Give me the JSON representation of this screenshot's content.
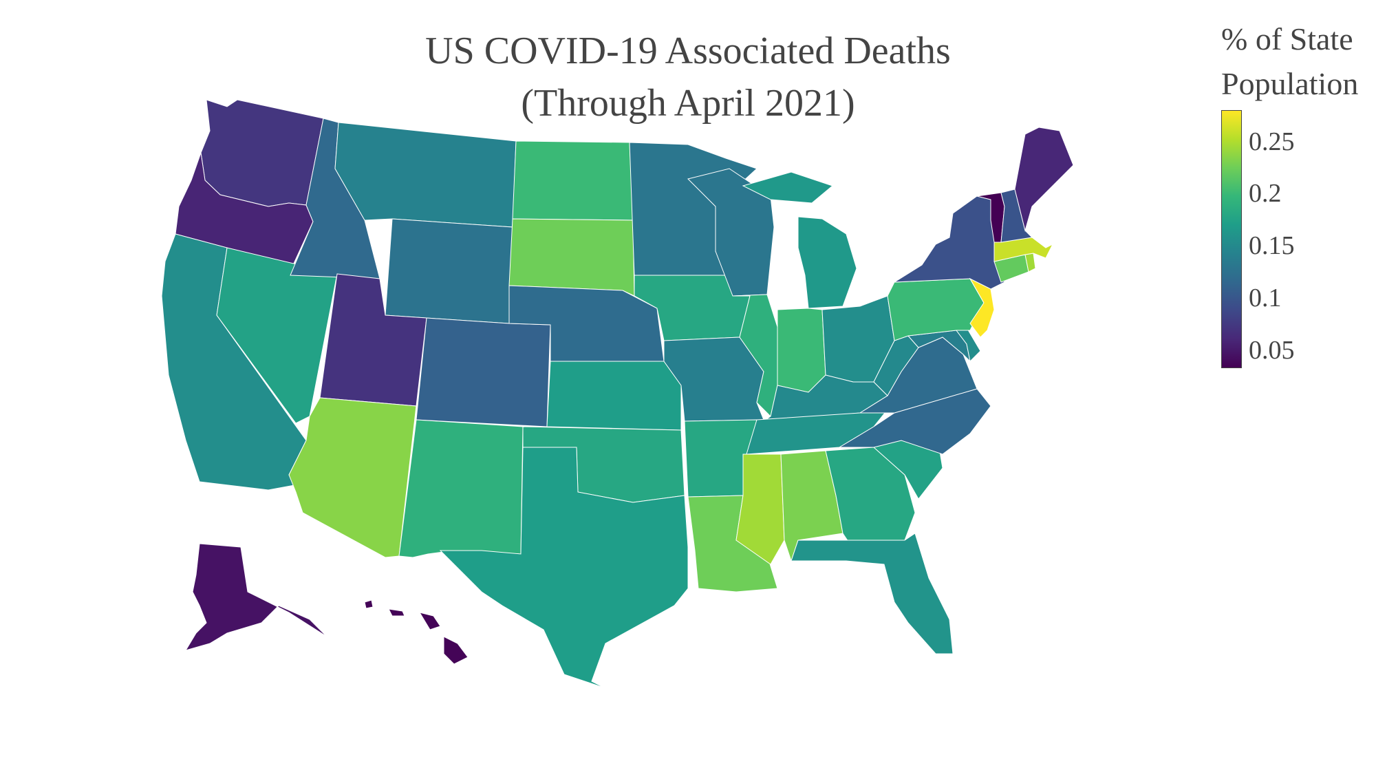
{
  "title_line1": "US COVID-19 Associated Deaths",
  "title_line2": "(Through April 2021)",
  "colorbar": {
    "title_line1": "% of State",
    "title_line2": "Population",
    "min": 0.033,
    "max": 0.28,
    "ticks": [
      {
        "value": 0.05,
        "label": "0.05"
      },
      {
        "value": 0.1,
        "label": "0.1"
      },
      {
        "value": 0.15,
        "label": "0.15"
      },
      {
        "value": 0.2,
        "label": "0.2"
      },
      {
        "value": 0.25,
        "label": "0.25"
      }
    ],
    "colorscale": "viridis"
  },
  "chart_data": {
    "type": "choropleth",
    "metric": "% of State Population",
    "states": [
      {
        "code": "WA",
        "value": 0.072
      },
      {
        "code": "OR",
        "value": 0.058
      },
      {
        "code": "CA",
        "value": 0.155
      },
      {
        "code": "NV",
        "value": 0.175
      },
      {
        "code": "ID",
        "value": 0.117
      },
      {
        "code": "MT",
        "value": 0.143
      },
      {
        "code": "WY",
        "value": 0.127
      },
      {
        "code": "UT",
        "value": 0.07
      },
      {
        "code": "AZ",
        "value": 0.235
      },
      {
        "code": "CO",
        "value": 0.11
      },
      {
        "code": "NM",
        "value": 0.19
      },
      {
        "code": "ND",
        "value": 0.2
      },
      {
        "code": "SD",
        "value": 0.225
      },
      {
        "code": "NE",
        "value": 0.12
      },
      {
        "code": "KS",
        "value": 0.17
      },
      {
        "code": "OK",
        "value": 0.18
      },
      {
        "code": "TX",
        "value": 0.17
      },
      {
        "code": "MN",
        "value": 0.13
      },
      {
        "code": "IA",
        "value": 0.18
      },
      {
        "code": "MO",
        "value": 0.14
      },
      {
        "code": "AR",
        "value": 0.18
      },
      {
        "code": "LA",
        "value": 0.225
      },
      {
        "code": "WI",
        "value": 0.13
      },
      {
        "code": "IL",
        "value": 0.19
      },
      {
        "code": "MI",
        "value": 0.165
      },
      {
        "code": "IN",
        "value": 0.2
      },
      {
        "code": "OH",
        "value": 0.155
      },
      {
        "code": "KY",
        "value": 0.15
      },
      {
        "code": "TN",
        "value": 0.16
      },
      {
        "code": "MS",
        "value": 0.245
      },
      {
        "code": "AL",
        "value": 0.23
      },
      {
        "code": "GA",
        "value": 0.18
      },
      {
        "code": "FL",
        "value": 0.16
      },
      {
        "code": "SC",
        "value": 0.175
      },
      {
        "code": "NC",
        "value": 0.115
      },
      {
        "code": "VA",
        "value": 0.12
      },
      {
        "code": "WV",
        "value": 0.15
      },
      {
        "code": "MD",
        "value": 0.14
      },
      {
        "code": "DE",
        "value": 0.155
      },
      {
        "code": "PA",
        "value": 0.2
      },
      {
        "code": "NY",
        "value": 0.095
      },
      {
        "code": "NJ",
        "value": 0.28
      },
      {
        "code": "CT",
        "value": 0.22
      },
      {
        "code": "RI",
        "value": 0.245
      },
      {
        "code": "MA",
        "value": 0.26
      },
      {
        "code": "VT",
        "value": 0.033
      },
      {
        "code": "NH",
        "value": 0.098
      },
      {
        "code": "ME",
        "value": 0.06
      },
      {
        "code": "AK",
        "value": 0.045
      },
      {
        "code": "HI",
        "value": 0.035
      }
    ]
  }
}
